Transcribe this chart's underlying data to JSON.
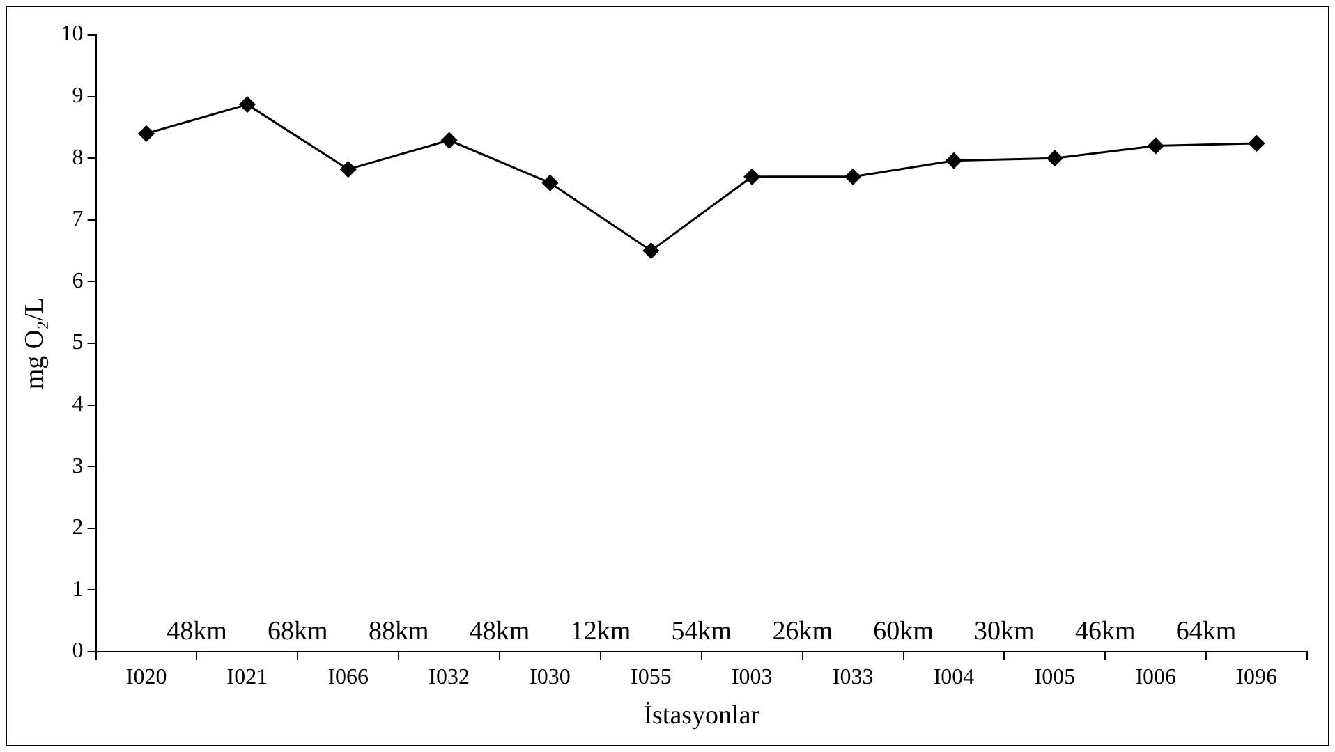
{
  "chart_data": {
    "type": "line",
    "xlabel": "İstasyonlar",
    "ylabel": "mg O₂/L",
    "categories": [
      "I020",
      "I021",
      "I066",
      "I032",
      "I030",
      "I055",
      "I003",
      "I033",
      "I004",
      "I005",
      "I006",
      "I096"
    ],
    "series": [
      {
        "color": "#000000",
        "values": [
          8.4,
          8.87,
          7.82,
          8.29,
          7.6,
          6.5,
          7.7,
          7.7,
          7.96,
          8.0,
          8.2,
          8.24
        ]
      }
    ],
    "ylim": [
      0,
      10
    ],
    "yticks": [
      0,
      1,
      2,
      3,
      4,
      5,
      6,
      7,
      8,
      9,
      10
    ],
    "grid": false,
    "legend": false,
    "marker": "diamond",
    "line_style": "solid",
    "annotations": [
      "48km",
      "68km",
      "88km",
      "48km",
      "12km",
      "54km",
      "26km",
      "60km",
      "30km",
      "46km",
      "64km"
    ]
  }
}
